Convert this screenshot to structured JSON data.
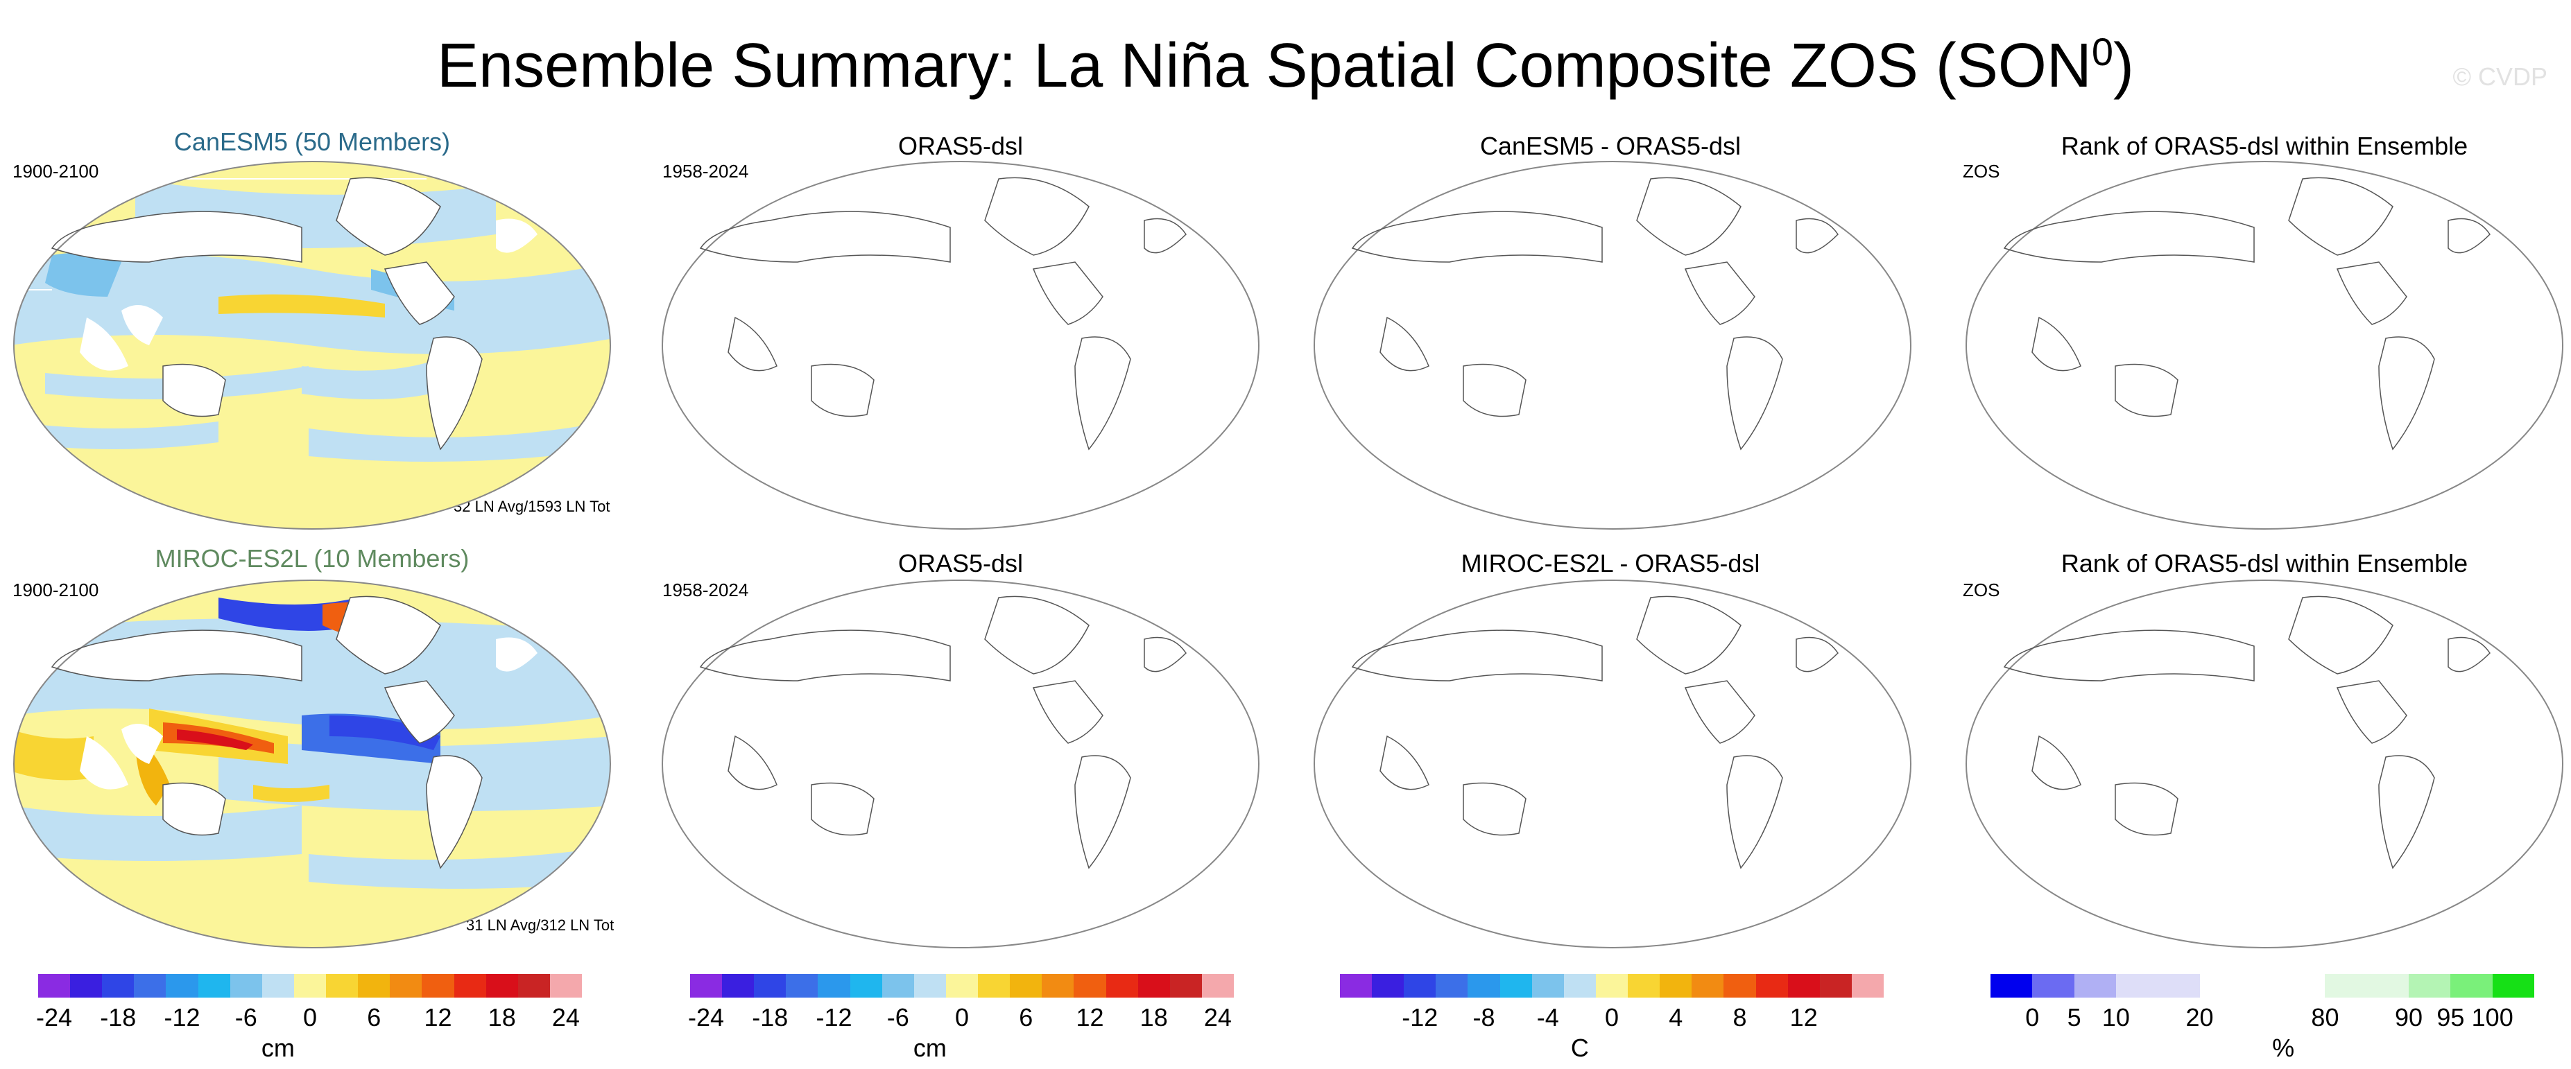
{
  "title_main": "Ensemble Summary: La Niña Spatial Composite ZOS (SON",
  "title_sup": "0",
  "title_close": ")",
  "watermark": "© CVDP",
  "row1": {
    "model_title": "CanESM5 (50 Members)",
    "model_title_color": "#2a6a8a",
    "model_years": "1900-2100",
    "model_note": "32 LN Avg/1593 LN Tot",
    "obs_title": "ORAS5-dsl",
    "obs_years": "1958-2024",
    "diff_title": "CanESM5 - ORAS5-dsl",
    "rank_title": "Rank of ORAS5-dsl within Ensemble",
    "rank_label": "ZOS"
  },
  "row2": {
    "model_title": "MIROC-ES2L (10 Members)",
    "model_title_color": "#5f8a5f",
    "model_years": "1900-2100",
    "model_note": "31 LN Avg/312 LN Tot",
    "obs_title": "ORAS5-dsl",
    "obs_years": "1958-2024",
    "diff_title": "MIROC-ES2L - ORAS5-dsl",
    "rank_title": "Rank of ORAS5-dsl within Ensemble",
    "rank_label": "ZOS"
  },
  "colorbars": [
    {
      "unit": "cm",
      "colors": [
        "#8a2be2",
        "#3a1fe0",
        "#2f45e6",
        "#3c6fe8",
        "#2b98ec",
        "#1fb6ee",
        "#7cc3ec",
        "#bfe0f3",
        "#fbf59a",
        "#f8d533",
        "#f2b40e",
        "#f28b12",
        "#f05f10",
        "#e82a14",
        "#d90f1a",
        "#c92424",
        "#f4a8ac"
      ],
      "ticks": [
        "-24",
        "-18",
        "-12",
        "-6",
        "0",
        "6",
        "12",
        "18",
        "24"
      ]
    },
    {
      "unit": "cm",
      "colors": [
        "#8a2be2",
        "#3a1fe0",
        "#2f45e6",
        "#3c6fe8",
        "#2b98ec",
        "#1fb6ee",
        "#7cc3ec",
        "#bfe0f3",
        "#fbf59a",
        "#f8d533",
        "#f2b40e",
        "#f28b12",
        "#f05f10",
        "#e82a14",
        "#d90f1a",
        "#c92424",
        "#f4a8ac"
      ],
      "ticks": [
        "-24",
        "-18",
        "-12",
        "-6",
        "0",
        "6",
        "12",
        "18",
        "24"
      ]
    },
    {
      "unit": "C",
      "colors": [
        "#8a2be2",
        "#3a1fe0",
        "#2f45e6",
        "#3c6fe8",
        "#2b98ec",
        "#1fb6ee",
        "#7cc3ec",
        "#bfe0f3",
        "#fbf59a",
        "#f8d533",
        "#f2b40e",
        "#f28b12",
        "#f05f10",
        "#e82a14",
        "#d90f1a",
        "#c92424",
        "#f4a8ac"
      ],
      "ticks": [
        "-12",
        "-8",
        "-4",
        "0",
        "4",
        "8",
        "12"
      ]
    },
    {
      "unit": "%",
      "colors": [
        "#0000ee",
        "#6b6bf2",
        "#b0b0f4",
        "#dedef8",
        "#dedef8",
        "#ffffff",
        "#ffffff",
        "#ffffff",
        "#e2f8e2",
        "#e2f8e2",
        "#b4f4b4",
        "#7af07a",
        "#16e016"
      ],
      "ticks": [
        "0",
        "5",
        "10",
        "20",
        "80",
        "90",
        "95",
        "100"
      ]
    }
  ]
}
